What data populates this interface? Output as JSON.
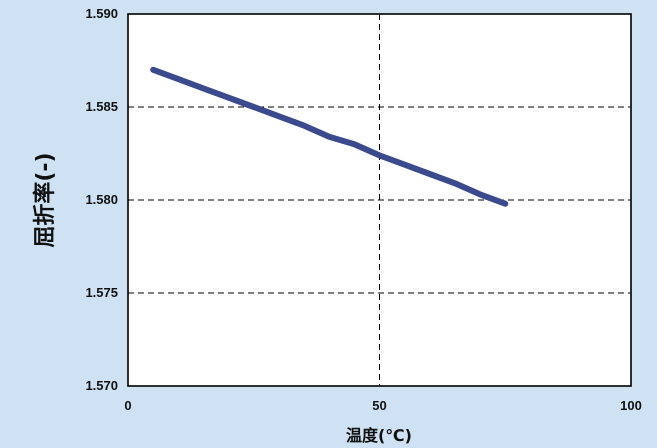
{
  "chart_data": {
    "type": "line",
    "title": "",
    "xlabel": "温度(℃)",
    "ylabel": "屈折率(-)",
    "xlim": [
      0,
      100
    ],
    "ylim": [
      1.57,
      1.59
    ],
    "x_ticks": [
      "0",
      "50",
      "100"
    ],
    "y_ticks": [
      "1.570",
      "1.575",
      "1.580",
      "1.585",
      "1.590"
    ],
    "grid": "dashed",
    "series": [
      {
        "color": "#3a4a8c",
        "x": [
          5,
          10,
          15,
          20,
          25,
          30,
          35,
          40,
          45,
          50,
          55,
          60,
          65,
          70,
          75
        ],
        "y": [
          1.587,
          1.5865,
          1.586,
          1.5855,
          1.585,
          1.5845,
          1.584,
          1.5834,
          1.583,
          1.5824,
          1.5819,
          1.5814,
          1.5809,
          1.5803,
          1.5798
        ]
      }
    ]
  }
}
